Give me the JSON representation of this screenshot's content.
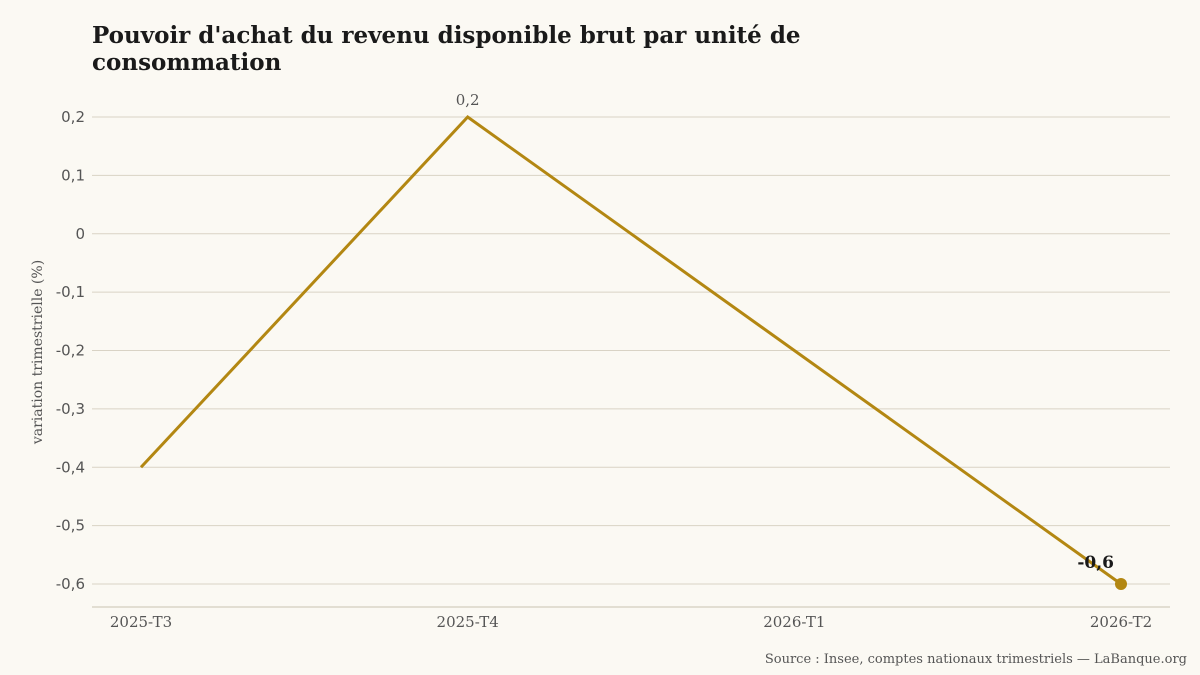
{
  "title": "Pouvoir d'achat du revenu disponible brut par unité de consommation",
  "source": "Source : Insee, comptes nationaux trimestriels — LaBanque.org",
  "colors": {
    "line": "#b38712",
    "background": "#fbf9f3",
    "grid": "#d9d3c5"
  },
  "chart_data": {
    "type": "line",
    "categories": [
      "2025-T3",
      "2025-T4",
      "2026-T1",
      "2026-T2"
    ],
    "series": [
      {
        "values": [
          -0.4,
          0.2,
          -0.2,
          -0.6
        ]
      }
    ],
    "ylabel": "variation trimestrielle (%)",
    "xlabel": "",
    "ylim": [
      -0.6,
      0.2
    ],
    "yticks": [
      0.2,
      0.1,
      0,
      -0.1,
      -0.2,
      -0.3,
      -0.4,
      -0.5,
      -0.6
    ],
    "ytick_labels": [
      "0,2",
      "0,1",
      "0",
      "-0,1",
      "-0,2",
      "-0,3",
      "-0,4",
      "-0,5",
      "-0,6"
    ],
    "annotations": [
      {
        "category": "2025-T4",
        "value": 0.2,
        "text": "0,2"
      },
      {
        "category": "2026-T2",
        "value": -0.6,
        "text": "-0,6",
        "emphasis": true
      }
    ],
    "grid": true,
    "legend": false
  }
}
